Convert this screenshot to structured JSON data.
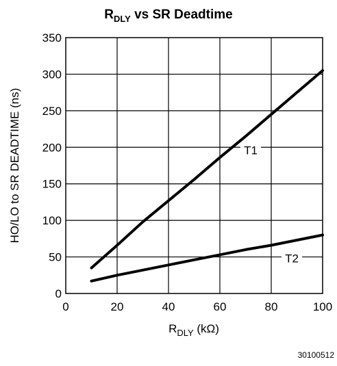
{
  "chart_data": {
    "type": "line",
    "title": {
      "main": "R",
      "sub": "DLY",
      "rest": " vs SR Deadtime"
    },
    "xlabel": {
      "main": "R",
      "sub": "DLY",
      "rest": " (kΩ)"
    },
    "ylabel": "HO/LO to SR DEADTIME (ns)",
    "xlim": [
      0,
      100
    ],
    "ylim": [
      0,
      350
    ],
    "x_ticks": [
      0,
      20,
      40,
      60,
      80,
      100
    ],
    "y_ticks": [
      0,
      50,
      100,
      150,
      200,
      250,
      300,
      350
    ],
    "grid": true,
    "series": [
      {
        "name": "T1",
        "x": [
          10,
          20,
          30,
          40,
          50,
          60,
          70,
          80,
          90,
          100
        ],
        "y": [
          35,
          66,
          98,
          127,
          156,
          186,
          215,
          245,
          275,
          305
        ],
        "label_at": [
          72,
          196
        ]
      },
      {
        "name": "T2",
        "x": [
          10,
          20,
          30,
          40,
          50,
          60,
          70,
          80,
          90,
          100
        ],
        "y": [
          17,
          25,
          32,
          39,
          46,
          53,
          60,
          66,
          73,
          80
        ],
        "label_at": [
          88,
          48
        ]
      }
    ],
    "figure_id": "30100512"
  }
}
